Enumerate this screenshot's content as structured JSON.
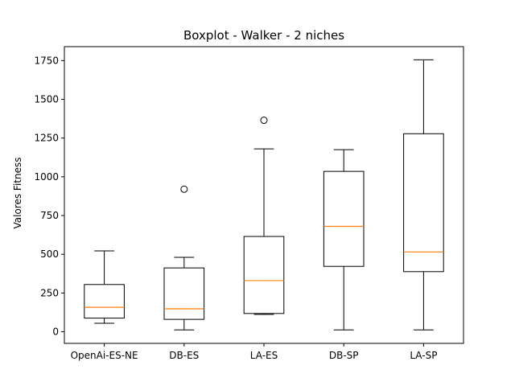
{
  "chart_data": {
    "type": "boxplot",
    "title": "Boxplot - Walker - 2 niches",
    "xlabel": "",
    "ylabel": "Valores Fitness",
    "ylim": [
      -75,
      1840
    ],
    "yticks": [
      0,
      250,
      500,
      750,
      1000,
      1250,
      1500,
      1750
    ],
    "grid": false,
    "categories": [
      "OpenAi-ES-NE",
      "DB-ES",
      "LA-ES",
      "DB-SP",
      "LA-SP"
    ],
    "boxes": [
      {
        "whislo": 55,
        "q1": 88,
        "med": 158,
        "q3": 305,
        "whishi": 522,
        "fliers": []
      },
      {
        "whislo": 12,
        "q1": 80,
        "med": 148,
        "q3": 412,
        "whishi": 480,
        "fliers": [
          920
        ]
      },
      {
        "whislo": 112,
        "q1": 118,
        "med": 330,
        "q3": 615,
        "whishi": 1180,
        "fliers": [
          1365
        ]
      },
      {
        "whislo": 12,
        "q1": 422,
        "med": 680,
        "q3": 1035,
        "whishi": 1175,
        "fliers": []
      },
      {
        "whislo": 12,
        "q1": 388,
        "med": 515,
        "q3": 1278,
        "whishi": 1755,
        "fliers": []
      }
    ],
    "colors": {
      "box": "#000000",
      "median": "#ff7f0e",
      "axes": "#000000"
    }
  }
}
